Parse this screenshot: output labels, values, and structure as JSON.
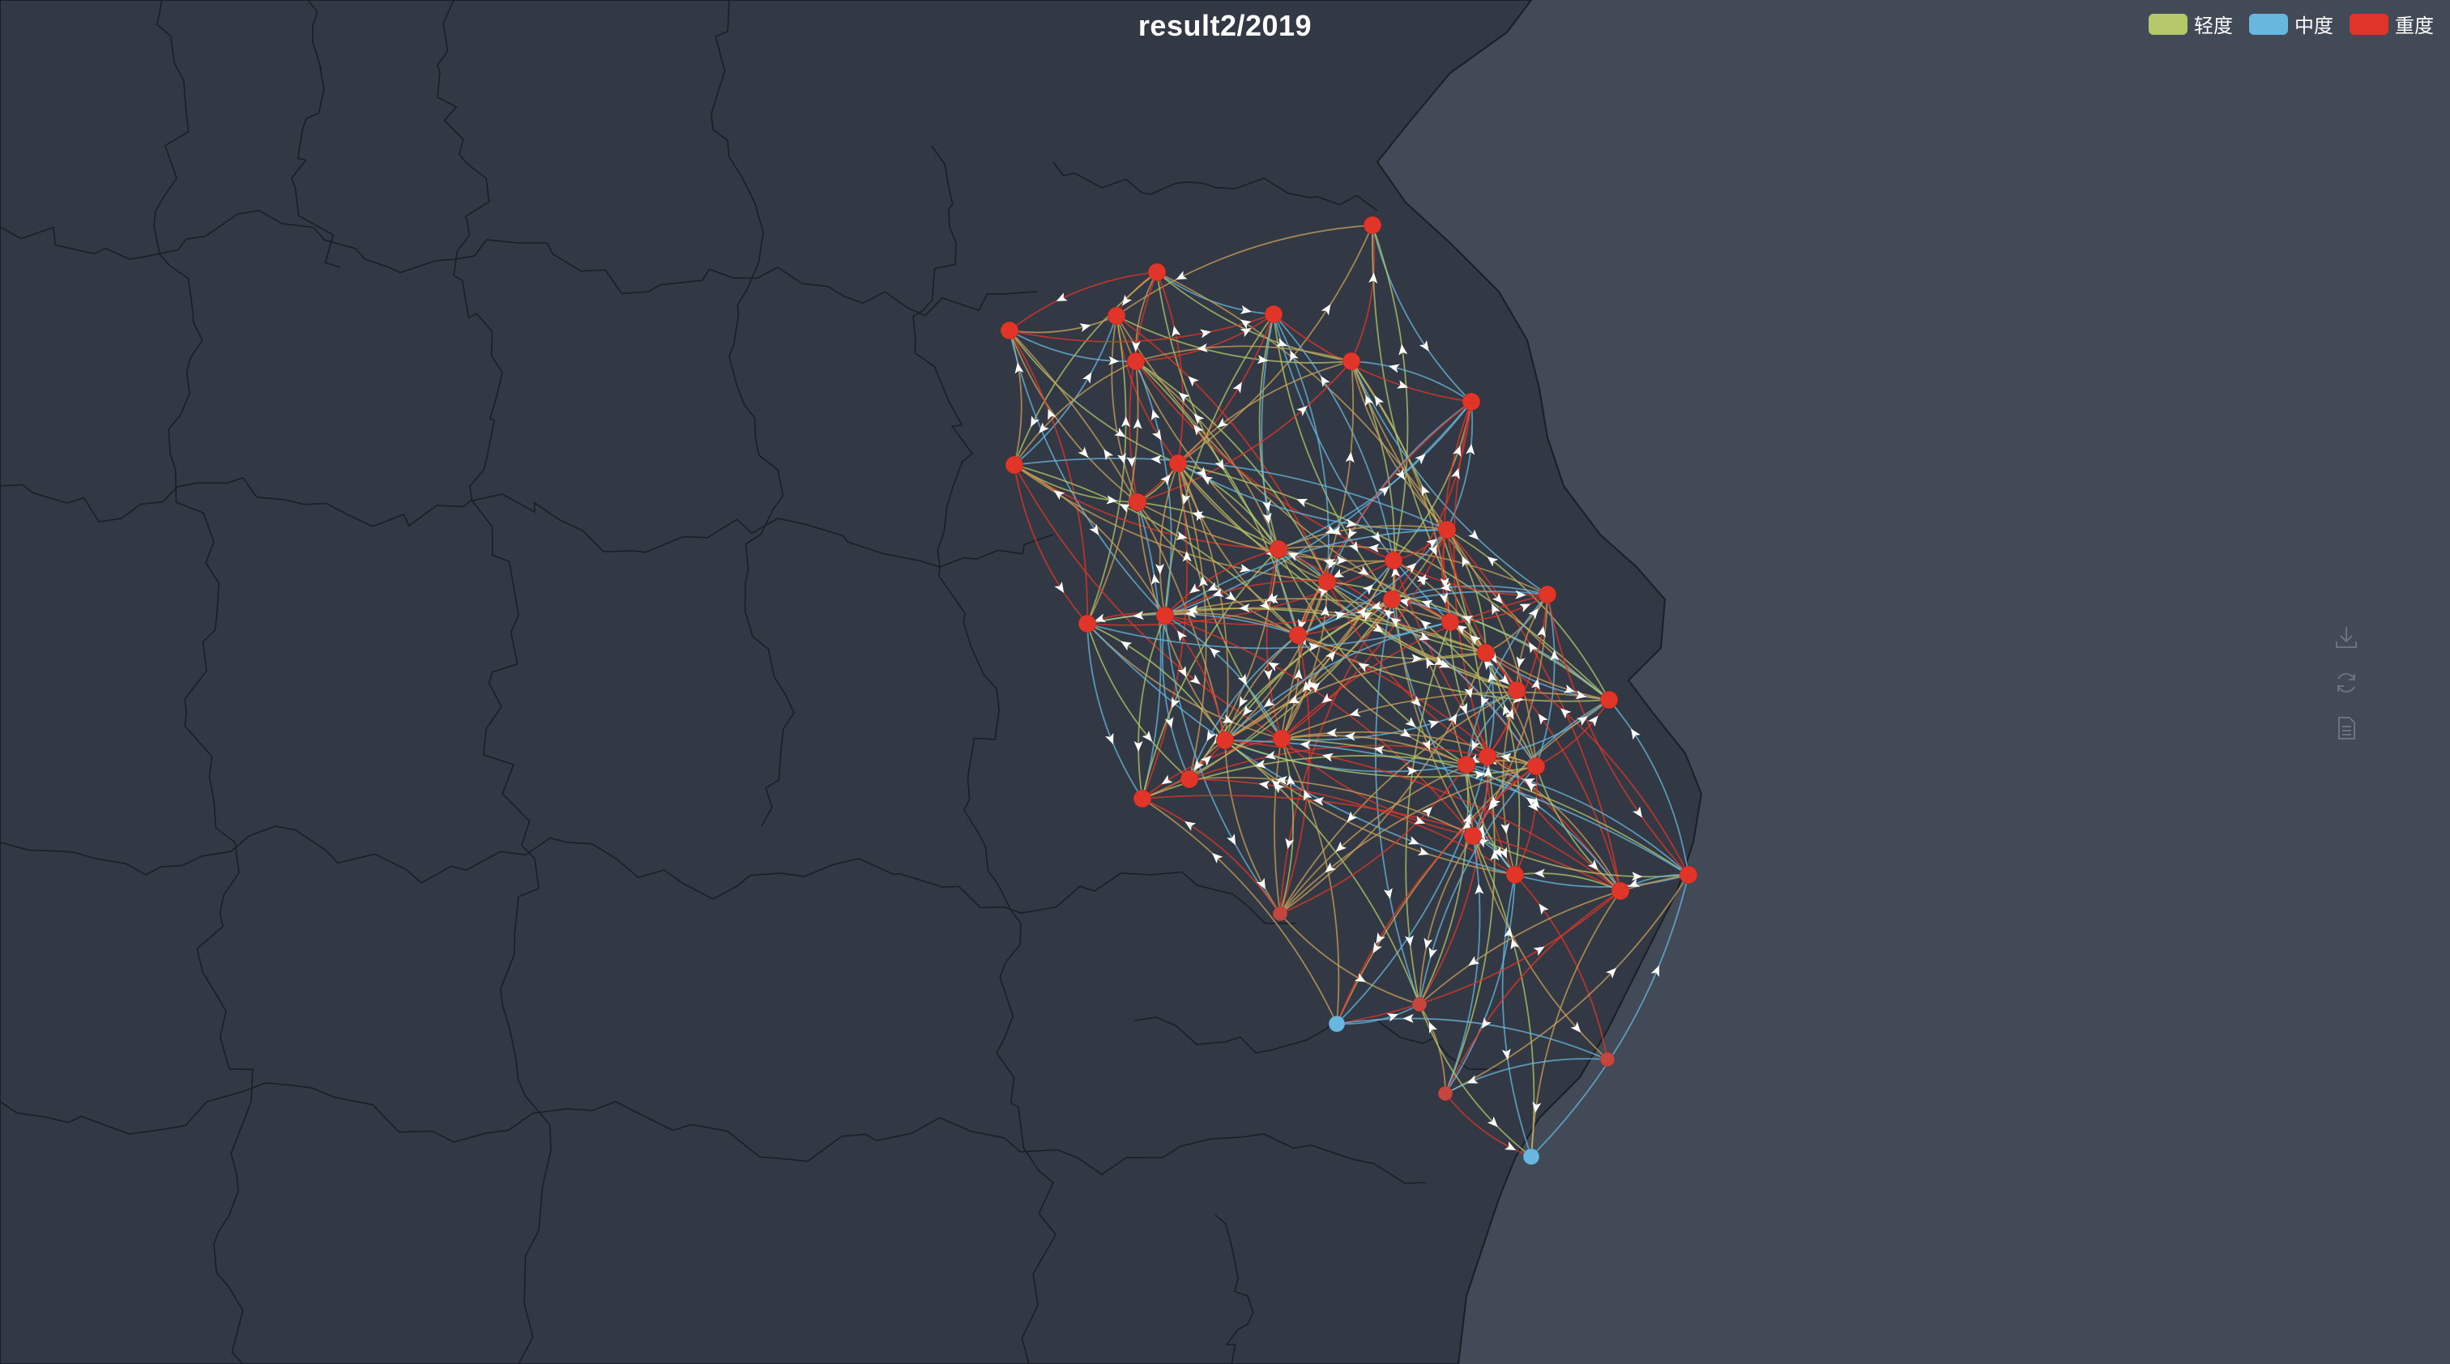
{
  "chart": {
    "title": "result2/2019"
  },
  "legend": {
    "items": [
      {
        "label": "轻度",
        "color": "#b4c86a"
      },
      {
        "label": "中度",
        "color": "#68b7de"
      },
      {
        "label": "重度",
        "color": "#e03528"
      }
    ]
  },
  "toolbox": {
    "items": [
      {
        "icon": "download-icon",
        "action": "save-as-image"
      },
      {
        "icon": "refresh-icon",
        "action": "restore"
      },
      {
        "icon": "document-icon",
        "action": "data-view"
      }
    ]
  },
  "map": {
    "land_color": "#323944",
    "sea_color": "#424a57",
    "border_color": "#1a1f26"
  },
  "chart_data": {
    "type": "graph",
    "levels": [
      "轻度",
      "中度",
      "重度"
    ],
    "nodes": [
      {
        "id": "n1",
        "level": "重度"
      },
      {
        "id": "n2",
        "level": "重度"
      },
      {
        "id": "n3",
        "level": "重度"
      },
      {
        "id": "n4",
        "level": "重度"
      },
      {
        "id": "n5",
        "level": "重度"
      },
      {
        "id": "n6",
        "level": "重度"
      },
      {
        "id": "n7",
        "level": "重度"
      },
      {
        "id": "n8",
        "level": "重度"
      },
      {
        "id": "n9",
        "level": "重度"
      },
      {
        "id": "n10",
        "level": "重度"
      },
      {
        "id": "n11",
        "level": "重度"
      },
      {
        "id": "n12",
        "level": "重度"
      },
      {
        "id": "n13",
        "level": "重度"
      },
      {
        "id": "n14",
        "level": "重度"
      },
      {
        "id": "n15",
        "level": "重度"
      },
      {
        "id": "n16",
        "level": "重度"
      },
      {
        "id": "n17",
        "level": "重度"
      },
      {
        "id": "n18",
        "level": "重度"
      },
      {
        "id": "n19",
        "level": "重度"
      },
      {
        "id": "n20",
        "level": "重度"
      },
      {
        "id": "n21",
        "level": "重度"
      },
      {
        "id": "n22",
        "level": "重度"
      },
      {
        "id": "n23",
        "level": "重度"
      },
      {
        "id": "n24",
        "level": "重度"
      },
      {
        "id": "n25",
        "level": "重度"
      },
      {
        "id": "n26",
        "level": "重度"
      },
      {
        "id": "n27",
        "level": "重度"
      },
      {
        "id": "n28",
        "level": "重度"
      },
      {
        "id": "n29",
        "level": "重度"
      },
      {
        "id": "n30",
        "level": "重度"
      },
      {
        "id": "n31",
        "level": "重度"
      },
      {
        "id": "n32",
        "level": "重度"
      },
      {
        "id": "n33",
        "level": "重度"
      },
      {
        "id": "n34",
        "level": "重度"
      },
      {
        "id": "n35",
        "level": "重度"
      },
      {
        "id": "n36",
        "level": "重度"
      },
      {
        "id": "n37",
        "level": "重度"
      },
      {
        "id": "n38",
        "level": "重度"
      },
      {
        "id": "n39",
        "level": "重度"
      },
      {
        "id": "n40",
        "level": "中度"
      },
      {
        "id": "n41",
        "level": "中度"
      }
    ]
  }
}
